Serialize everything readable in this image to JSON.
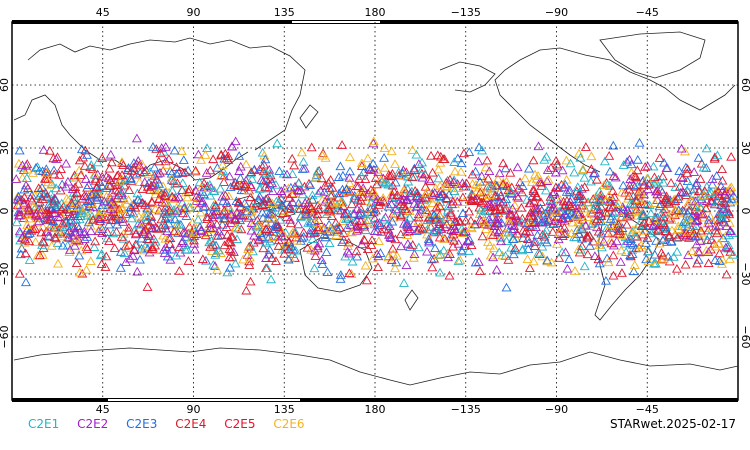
{
  "map": {
    "top_lon_labels": [
      "45",
      "90",
      "135",
      "180",
      "−135",
      "−90",
      "−45"
    ],
    "bottom_lon_labels": [
      "45",
      "90",
      "135",
      "180",
      "−135",
      "−90",
      "−45"
    ],
    "left_lat_labels": [
      "60",
      "30",
      "0",
      "−30",
      "−60"
    ],
    "right_lat_labels": [
      "60",
      "30",
      "0",
      "−30",
      "−60"
    ],
    "lon_values": [
      45,
      90,
      135,
      180,
      -135,
      -90,
      -45
    ],
    "lat_values": [
      60,
      30,
      0,
      -30,
      -60
    ],
    "marker": "triangle",
    "point_lat_range": [
      -40,
      40
    ],
    "grid": true
  },
  "legend": {
    "items": [
      {
        "label": "C2E1",
        "color": "#1fb5c8"
      },
      {
        "label": "C2E2",
        "color": "#a020c8"
      },
      {
        "label": "C2E3",
        "color": "#1f6fe0"
      },
      {
        "label": "C2E4",
        "color": "#d81b2a"
      },
      {
        "label": "C2E5",
        "color": "#e8102e"
      },
      {
        "label": "C2E6",
        "color": "#f5b21a"
      }
    ]
  },
  "footer": {
    "label": "STARwet.2025-02-17"
  }
}
